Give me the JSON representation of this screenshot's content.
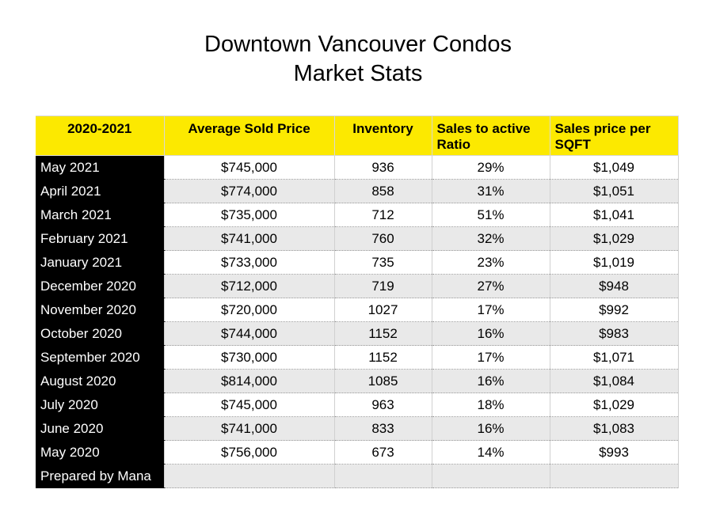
{
  "title": {
    "line1": "Downtown Vancouver Condos",
    "line2": "Market Stats"
  },
  "colors": {
    "header_bg": "#fce900",
    "row_label_bg": "#000000",
    "alt_row_bg": "#e9e9e9"
  },
  "table": {
    "headers": [
      "2020-2021",
      "Average Sold Price",
      "Inventory",
      "Sales to active Ratio",
      "Sales price per SQFT"
    ],
    "rows": [
      [
        "May 2021",
        "$745,000",
        "936",
        "29%",
        "$1,049"
      ],
      [
        "April 2021",
        "$774,000",
        "858",
        "31%",
        "$1,051"
      ],
      [
        "March 2021",
        "$735,000",
        "712",
        "51%",
        "$1,041"
      ],
      [
        "February 2021",
        "$741,000",
        "760",
        "32%",
        "$1,029"
      ],
      [
        "January 2021",
        "$733,000",
        "735",
        "23%",
        "$1,019"
      ],
      [
        "December 2020",
        "$712,000",
        "719",
        "27%",
        "$948"
      ],
      [
        "November 2020",
        "$720,000",
        "1027",
        "17%",
        "$992"
      ],
      [
        "October 2020",
        "$744,000",
        "1152",
        "16%",
        "$983"
      ],
      [
        "September 2020",
        "$730,000",
        "1152",
        "17%",
        "$1,071"
      ],
      [
        "August 2020",
        "$814,000",
        "1085",
        "16%",
        "$1,084"
      ],
      [
        "July 2020",
        "$745,000",
        "963",
        "18%",
        "$1,029"
      ],
      [
        "June 2020",
        "$741,000",
        "833",
        "16%",
        "$1,083"
      ],
      [
        "May 2020",
        "$756,000",
        "673",
        "14%",
        "$993"
      ],
      [
        "Prepared by Mana",
        "",
        "",
        "",
        ""
      ]
    ]
  }
}
